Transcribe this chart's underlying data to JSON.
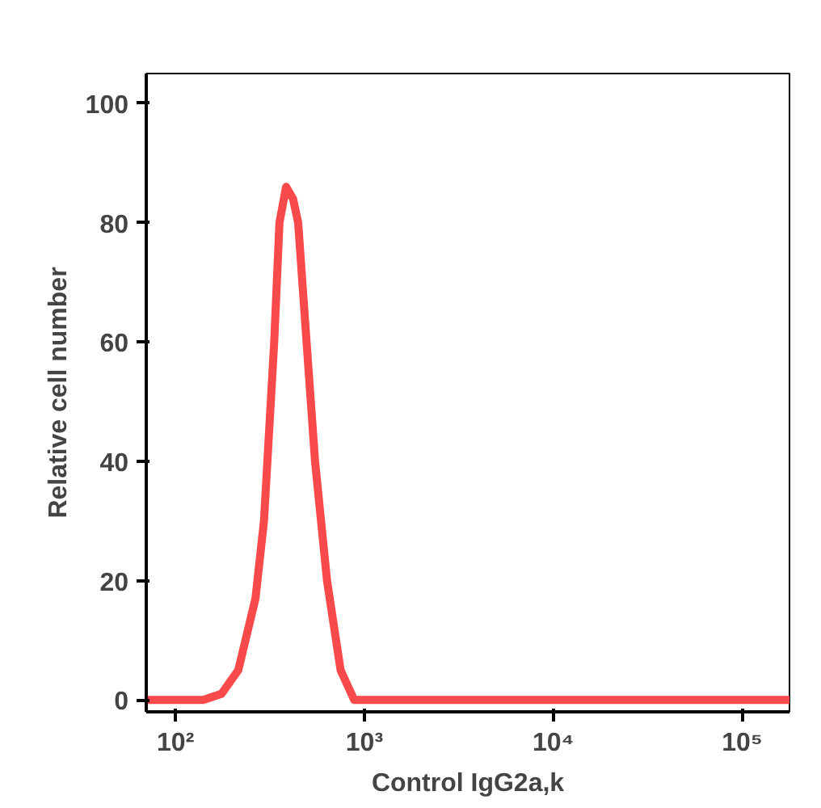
{
  "chart_data": {
    "type": "line",
    "xlabel": "Control IgG2a,k",
    "ylabel": "Relative cell number",
    "log": "x",
    "x": [
      70,
      140,
      175,
      215,
      265,
      294,
      333,
      355,
      385,
      419,
      446,
      494,
      548,
      634,
      748,
      883,
      1000,
      178000
    ],
    "series": [
      {
        "color": "#f84a4a",
        "values": [
          0,
          0,
          1,
          5,
          17,
          30,
          60,
          80,
          86,
          84,
          80,
          60,
          40,
          20,
          5,
          0,
          0,
          0
        ]
      }
    ],
    "xlim": [
      70,
      178000
    ],
    "xticks": [
      {
        "value": 100,
        "label": "10²"
      },
      {
        "value": 1000,
        "label": "10³"
      },
      {
        "value": 10000,
        "label": "10⁴"
      },
      {
        "value": 100000,
        "label": "10⁵"
      }
    ],
    "ylim": [
      -2,
      105
    ],
    "yticks": [
      0,
      20,
      40,
      60,
      80,
      100
    ],
    "grid": false,
    "marker": "none",
    "line_style": "solid"
  }
}
